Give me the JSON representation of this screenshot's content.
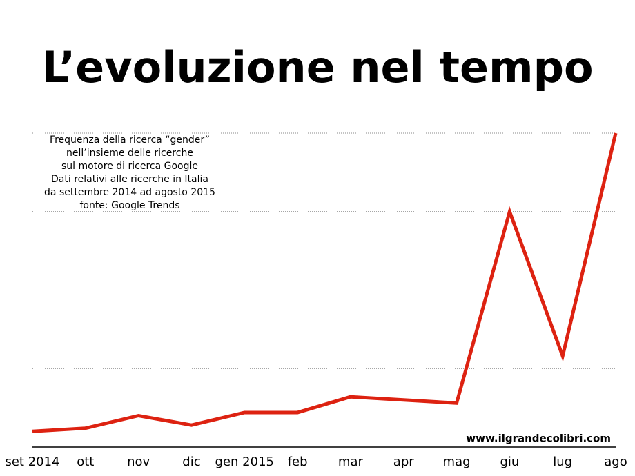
{
  "chart_data": {
    "type": "line",
    "title": "L’evoluzione nel tempo",
    "annotation": [
      "Frequenza della ricerca “gender”",
      "nell’insieme delle ricerche",
      "sul motore di ricerca Google",
      "Dati relativi alle ricerche in Italia",
      "da settembre 2014 ad agosto 2015",
      "fonte: Google Trends"
    ],
    "watermark": "www.ilgrandecolibri.com",
    "categories": [
      "set 2014",
      "ott",
      "nov",
      "dic",
      "gen 2015",
      "feb",
      "mar",
      "apr",
      "mag",
      "giu",
      "lug",
      "ago"
    ],
    "values": [
      5,
      6,
      10,
      7,
      11,
      11,
      16,
      15,
      14,
      75,
      29,
      100
    ],
    "color": "#dd2211",
    "ylim": [
      0,
      100
    ],
    "yticks": [
      25,
      50,
      75,
      100
    ],
    "grid": true
  }
}
